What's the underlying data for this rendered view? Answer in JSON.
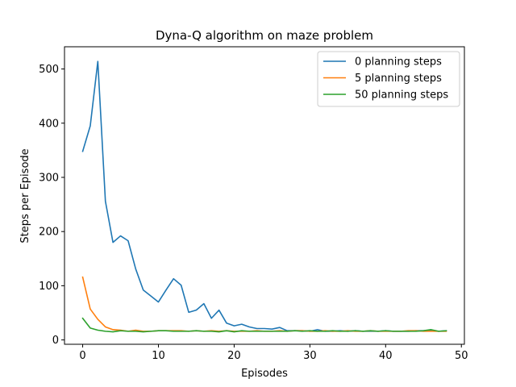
{
  "chart_data": {
    "type": "line",
    "title": "Dyna-Q algorithm on maze problem",
    "xlabel": "Episodes",
    "ylabel": "Steps per Episode",
    "xlim": [
      -2.4,
      50.4
    ],
    "ylim": [
      -8,
      541
    ],
    "grid": false,
    "legend_position": "top-right",
    "x_ticks": [
      0,
      10,
      20,
      30,
      40,
      50
    ],
    "y_ticks": [
      0,
      100,
      200,
      300,
      400,
      500
    ],
    "x": [
      0,
      1,
      2,
      3,
      4,
      5,
      6,
      7,
      8,
      9,
      10,
      11,
      12,
      13,
      14,
      15,
      16,
      17,
      18,
      19,
      20,
      21,
      22,
      23,
      24,
      25,
      26,
      27,
      28,
      29,
      30,
      31,
      32,
      33,
      34,
      35,
      36,
      37,
      38,
      39,
      40,
      41,
      42,
      43,
      44,
      45,
      46,
      47,
      48
    ],
    "series": [
      {
        "name": "0 planning steps",
        "color": "#1f77b4",
        "values": [
          348,
          395,
          514,
          256,
          180,
          192,
          183,
          131,
          92,
          81,
          70,
          92,
          113,
          101,
          51,
          55,
          67,
          40,
          55,
          31,
          26,
          29,
          24,
          21,
          21,
          20,
          23,
          17,
          17,
          17,
          16,
          19,
          16,
          16,
          17,
          16,
          17,
          16,
          16,
          16,
          17,
          16,
          16,
          16,
          17,
          17,
          17,
          16,
          17
        ]
      },
      {
        "name": "5 planning steps",
        "color": "#ff7f0e",
        "values": [
          116,
          57,
          38,
          24,
          19,
          18,
          16,
          18,
          16,
          16,
          17,
          17,
          17,
          17,
          16,
          17,
          16,
          17,
          16,
          17,
          16,
          16,
          16,
          17,
          16,
          16,
          17,
          16,
          17,
          17,
          16,
          16,
          17,
          16,
          16,
          17,
          16,
          16,
          17,
          16,
          16,
          16,
          16,
          17,
          17,
          16,
          16,
          16,
          16
        ]
      },
      {
        "name": "50 planning steps",
        "color": "#2ca02c",
        "values": [
          40,
          22,
          18,
          16,
          15,
          17,
          16,
          16,
          15,
          16,
          17,
          17,
          16,
          16,
          16,
          17,
          16,
          16,
          15,
          17,
          15,
          17,
          16,
          16,
          16,
          16,
          16,
          16,
          17,
          16,
          17,
          16,
          16,
          17,
          16,
          16,
          17,
          16,
          17,
          16,
          17,
          16,
          16,
          16,
          16,
          17,
          19,
          16,
          17
        ]
      }
    ]
  }
}
